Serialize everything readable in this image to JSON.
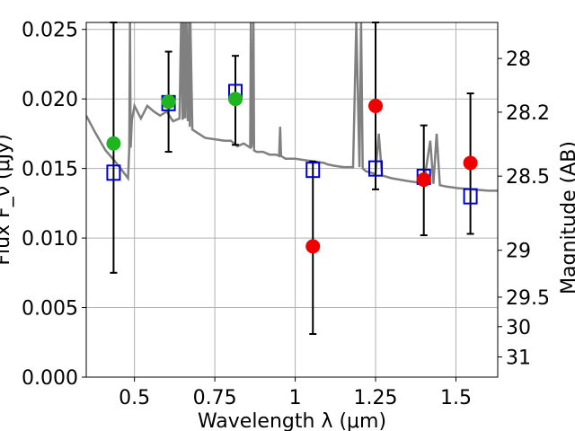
{
  "chart_data": {
    "type": "scatter",
    "xlabel": "Wavelength  λ (μm)",
    "ylabel": "Flux F_ν (μJy)",
    "ylabel_right": "Magnitude (AB)",
    "xlim": [
      0.35,
      1.63
    ],
    "ylim": [
      0.0,
      0.0255
    ],
    "grid": true,
    "x_ticks": [
      0.5,
      0.75,
      1.0,
      1.25,
      1.5
    ],
    "x_tick_labels": [
      "0.5",
      "0.75",
      "1",
      "1.25",
      "1.5"
    ],
    "y_ticks": [
      0.0,
      0.005,
      0.01,
      0.015,
      0.02,
      0.025
    ],
    "y_tick_labels": [
      "0.000",
      "0.005",
      "0.010",
      "0.015",
      "0.020",
      "0.025"
    ],
    "right_ticks": [
      {
        "label": "28",
        "flux": 0.02291
      },
      {
        "label": "28.2",
        "flux": 0.01905
      },
      {
        "label": "28.5",
        "flux": 0.01445
      },
      {
        "label": "29",
        "flux": 0.00912
      },
      {
        "label": "29.5",
        "flux": 0.00575
      },
      {
        "label": "30",
        "flux": 0.00363
      },
      {
        "label": "31",
        "flux": 0.00145
      }
    ],
    "series": [
      {
        "marker": "open-square",
        "color": "#0000cc",
        "points": [
          {
            "x": 0.435,
            "y": 0.0147
          },
          {
            "x": 0.606,
            "y": 0.0197
          },
          {
            "x": 0.814,
            "y": 0.0205
          },
          {
            "x": 1.055,
            "y": 0.0149
          },
          {
            "x": 1.25,
            "y": 0.015
          },
          {
            "x": 1.4,
            "y": 0.0144
          },
          {
            "x": 1.545,
            "y": 0.013
          }
        ]
      },
      {
        "marker": "filled-circle",
        "color": "#1fb51f",
        "points": [
          {
            "x": 0.435,
            "y": 0.0168,
            "err_lo": 0.0075,
            "err_hi": 0.0255
          },
          {
            "x": 0.606,
            "y": 0.0198,
            "err_lo": 0.0162,
            "err_hi": 0.0234
          },
          {
            "x": 0.814,
            "y": 0.02,
            "err_lo": 0.0167,
            "err_hi": 0.0231
          }
        ]
      },
      {
        "marker": "filled-circle",
        "color": "#ee0000",
        "points": [
          {
            "x": 1.055,
            "y": 0.0094,
            "err_lo": 0.0031,
            "err_hi": 0.0155
          },
          {
            "x": 1.25,
            "y": 0.0195,
            "err_lo": 0.0135,
            "err_hi": 0.0255
          },
          {
            "x": 1.4,
            "y": 0.0142,
            "err_lo": 0.0102,
            "err_hi": 0.0181
          },
          {
            "x": 1.545,
            "y": 0.0154,
            "err_lo": 0.0103,
            "err_hi": 0.0204
          }
        ]
      }
    ],
    "spectrum": {
      "color": "#808080",
      "x": [
        0.35,
        0.38,
        0.41,
        0.44,
        0.46,
        0.48,
        0.484,
        0.486,
        0.488,
        0.492,
        0.5,
        0.52,
        0.54,
        0.56,
        0.58,
        0.6,
        0.62,
        0.64,
        0.645,
        0.65,
        0.652,
        0.654,
        0.656,
        0.658,
        0.662,
        0.666,
        0.67,
        0.672,
        0.674,
        0.68,
        0.7,
        0.72,
        0.75,
        0.78,
        0.8,
        0.82,
        0.84,
        0.86,
        0.862,
        0.864,
        0.868,
        0.87,
        0.872,
        0.88,
        0.9,
        0.92,
        0.94,
        0.95,
        0.953,
        0.956,
        0.97,
        1.0,
        1.03,
        1.06,
        1.09,
        1.1,
        1.12,
        1.15,
        1.18,
        1.19,
        1.2,
        1.205,
        1.21,
        1.22,
        1.25,
        1.26,
        1.27,
        1.3,
        1.35,
        1.38,
        1.4,
        1.42,
        1.43,
        1.44,
        1.45,
        1.47,
        1.5,
        1.55,
        1.6,
        1.63
      ],
      "y": [
        0.0188,
        0.0175,
        0.0163,
        0.0155,
        0.0149,
        0.0143,
        0.0165,
        0.0255,
        0.0165,
        0.0185,
        0.0195,
        0.0186,
        0.0195,
        0.0191,
        0.0188,
        0.0191,
        0.0184,
        0.0186,
        0.0255,
        0.0185,
        0.0255,
        0.0186,
        0.0255,
        0.0186,
        0.0255,
        0.0184,
        0.0255,
        0.018,
        0.0255,
        0.0178,
        0.0175,
        0.0172,
        0.0171,
        0.017,
        0.017,
        0.0166,
        0.0168,
        0.0165,
        0.0255,
        0.0165,
        0.018,
        0.0255,
        0.0163,
        0.0162,
        0.0162,
        0.016,
        0.016,
        0.0159,
        0.018,
        0.0159,
        0.0157,
        0.0157,
        0.0156,
        0.0155,
        0.0154,
        0.0153,
        0.0152,
        0.0151,
        0.0151,
        0.0255,
        0.0151,
        0.0255,
        0.015,
        0.0148,
        0.0146,
        0.0175,
        0.0145,
        0.0143,
        0.0141,
        0.014,
        0.0139,
        0.017,
        0.0139,
        0.0175,
        0.0138,
        0.0137,
        0.0136,
        0.0135,
        0.0134,
        0.0134
      ]
    }
  }
}
